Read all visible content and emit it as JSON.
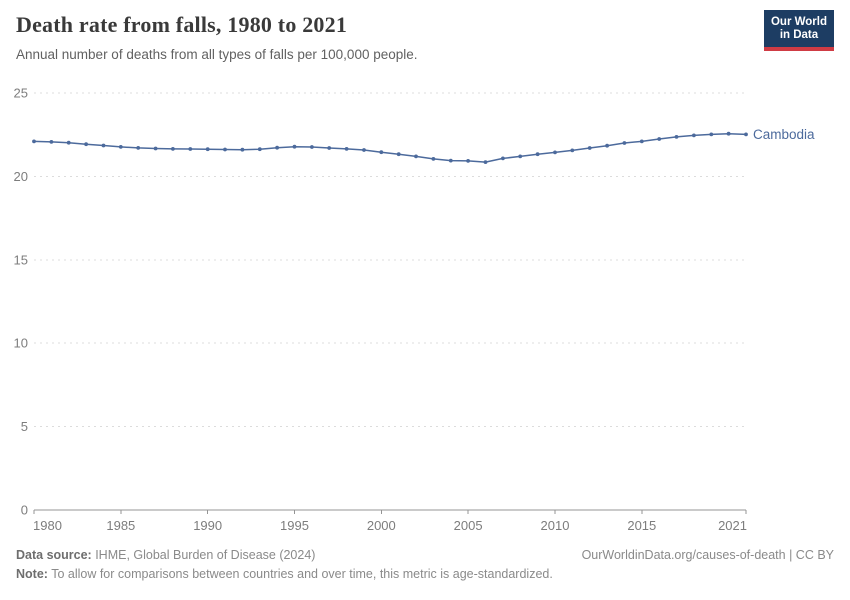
{
  "header": {
    "title": "Death rate from falls, 1980 to 2021",
    "subtitle": "Annual number of deaths from all types of falls per 100,000 people.",
    "logo_line1": "Our World",
    "logo_line2": "in Data"
  },
  "chart_data": {
    "type": "line",
    "title": "Death rate from falls, 1980 to 2021",
    "subtitle": "Annual number of deaths from all types of falls per 100,000 people.",
    "xlabel": "",
    "ylabel": "",
    "xlim": [
      1980,
      2021
    ],
    "ylim": [
      0,
      25
    ],
    "x_ticks": [
      1980,
      1985,
      1990,
      1995,
      2000,
      2005,
      2010,
      2015,
      2021
    ],
    "y_ticks": [
      0,
      5,
      10,
      15,
      20,
      25
    ],
    "grid": "dashed-horizontal",
    "legend_position": "end-of-line",
    "series": [
      {
        "name": "Cambodia",
        "color": "#4C6A9C",
        "x": [
          1980,
          1981,
          1982,
          1983,
          1984,
          1985,
          1986,
          1987,
          1988,
          1989,
          1990,
          1991,
          1992,
          1993,
          1994,
          1995,
          1996,
          1997,
          1998,
          1999,
          2000,
          2001,
          2002,
          2003,
          2004,
          2005,
          2006,
          2007,
          2008,
          2009,
          2010,
          2011,
          2012,
          2013,
          2014,
          2015,
          2016,
          2017,
          2018,
          2019,
          2020,
          2021
        ],
        "values": [
          22.1,
          22.07,
          22.02,
          21.93,
          21.85,
          21.77,
          21.71,
          21.67,
          21.65,
          21.64,
          21.63,
          21.61,
          21.6,
          21.63,
          21.72,
          21.78,
          21.76,
          21.7,
          21.65,
          21.58,
          21.45,
          21.33,
          21.2,
          21.05,
          20.95,
          20.93,
          20.86,
          21.08,
          21.2,
          21.33,
          21.44,
          21.56,
          21.7,
          21.84,
          22.0,
          22.1,
          22.24,
          22.37,
          22.46,
          22.52,
          22.56,
          22.52
        ]
      }
    ]
  },
  "entity_label": "Cambodia",
  "footer": {
    "source_label": "Data source:",
    "source_text": " IHME, Global Burden of Disease (2024)",
    "link_text": "OurWorldinData.org/causes-of-death | CC BY",
    "note_label": "Note:",
    "note_text": " To allow for comparisons between countries and over time, this metric is age-standardized."
  },
  "colors": {
    "line": "#4C6A9C",
    "entity_label": "#4C6A9C",
    "logo_bg": "#1D3D63",
    "logo_stripe": "#CF3B44",
    "title": "#3A3A3A",
    "subtitle": "#616161",
    "axis_text": "#7D7D7D",
    "grid": "#DCDCDC",
    "axis_line": "#949494",
    "footer_text": "#8A8A8A"
  }
}
